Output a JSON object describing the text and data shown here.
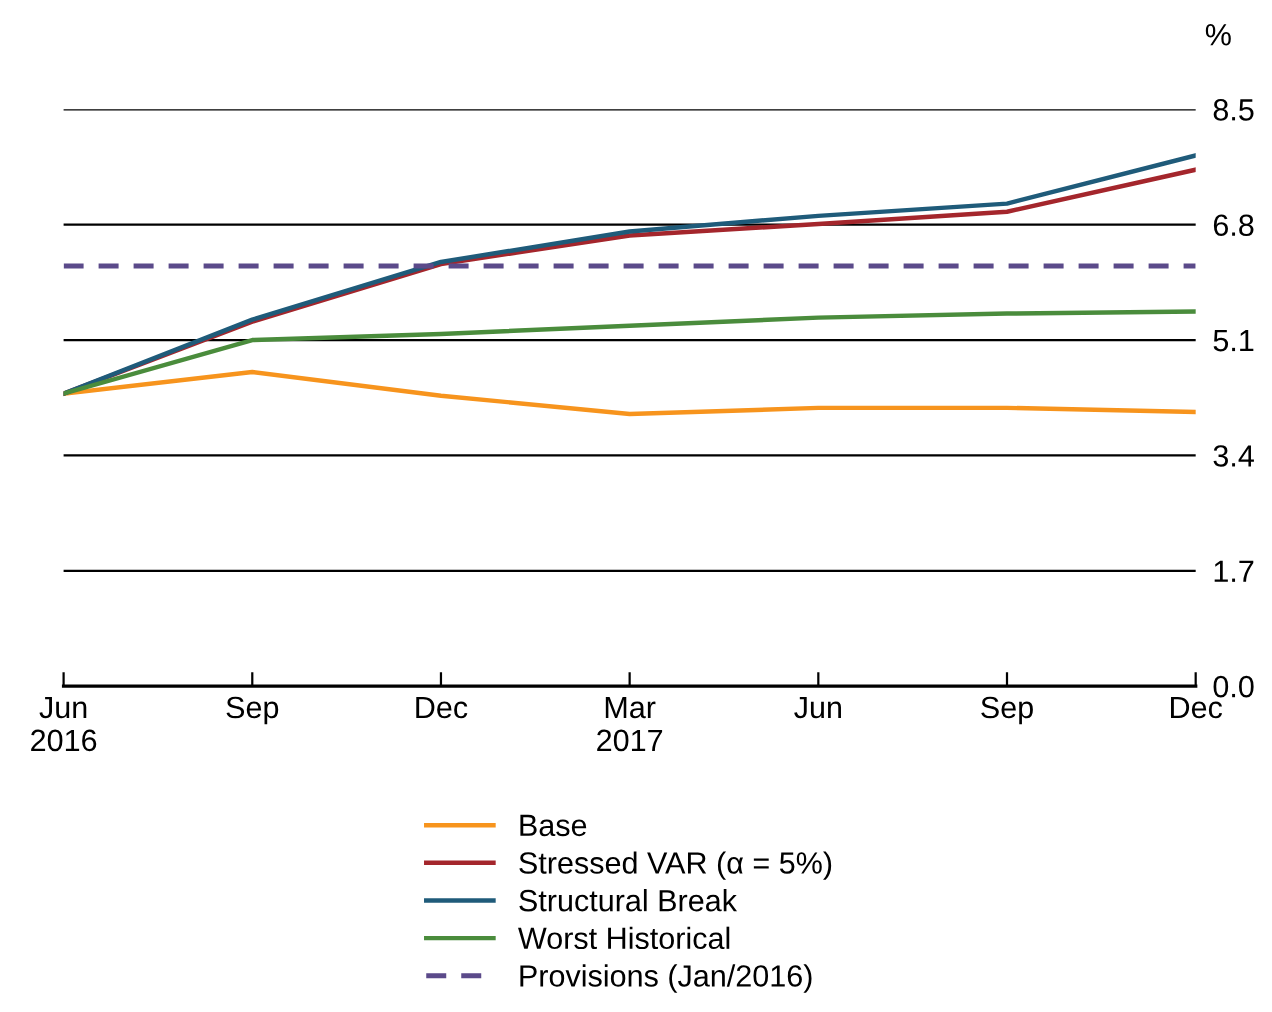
{
  "chart_data": {
    "type": "line",
    "ylabel": "%",
    "categories": [
      "Jun\n2016",
      "Sep",
      "Dec",
      "Mar\n2017",
      "Jun",
      "Sep",
      "Dec"
    ],
    "series": [
      {
        "name": "Base",
        "color": "#f7941d",
        "values": [
          4.31,
          4.63,
          4.28,
          4.01,
          4.1,
          4.1,
          4.04
        ]
      },
      {
        "name": "Stressed VAR (α = 5%)",
        "color": "#a4262c",
        "values": [
          4.31,
          5.37,
          6.22,
          6.64,
          6.81,
          6.99,
          7.61
        ]
      },
      {
        "name": "Structural Break",
        "color": "#1f5b7a",
        "values": [
          4.31,
          5.4,
          6.25,
          6.7,
          6.93,
          7.11,
          7.82
        ]
      },
      {
        "name": "Worst Historical",
        "color": "#4a8c3c",
        "values": [
          4.31,
          5.1,
          5.19,
          5.31,
          5.43,
          5.49,
          5.52
        ]
      }
    ],
    "ref_lines": [
      {
        "axis": "y",
        "value": 6.19,
        "label": "Provisions (Jan/2016)",
        "color": "#5b4a8a",
        "line_style": "dashed"
      }
    ],
    "ylim": [
      0,
      8.5
    ],
    "yticks": [
      {
        "value": 0,
        "label": "0.0"
      },
      1.7,
      3.4,
      5.1,
      6.8,
      8.5
    ],
    "grid": "y",
    "legend": "bottom",
    "marker": "none",
    "line_style": "solid"
  }
}
